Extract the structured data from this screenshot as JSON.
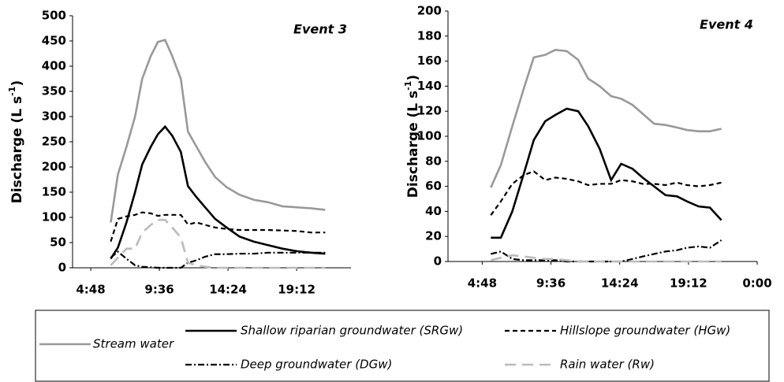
{
  "chart_data": [
    {
      "type": "line",
      "title": "Event 3",
      "y_label": [
        "Discharge (L s",
        "-1",
        ")"
      ],
      "x": [
        6.2,
        6.7,
        7.3,
        7.9,
        8.4,
        9.0,
        9.5,
        10.0,
        10.5,
        11.1,
        11.6,
        12.2,
        12.8,
        13.5,
        14.3,
        15.2,
        16.2,
        17.2,
        18.2,
        19.2,
        20.2,
        21.2
      ],
      "xlim": [
        3.53,
        23.0
      ],
      "xticks": [
        {
          "value": 4.8,
          "label": "4:48"
        },
        {
          "value": 9.6,
          "label": "9:36"
        },
        {
          "value": 14.4,
          "label": "14:24"
        },
        {
          "value": 19.2,
          "label": "19:12"
        }
      ],
      "ylim": [
        0,
        500
      ],
      "yticks": [
        0,
        50,
        100,
        150,
        200,
        250,
        300,
        350,
        400,
        450,
        500
      ],
      "grid": false,
      "series": [
        {
          "name": "Stream water",
          "color": "#999999",
          "dash": "solid",
          "values": [
            90,
            185,
            240,
            300,
            375,
            420,
            448,
            452,
            420,
            375,
            270,
            240,
            210,
            180,
            160,
            145,
            135,
            130,
            122,
            120,
            118,
            115
          ]
        },
        {
          "name": "Shallow riparian groundwater (SRGw)",
          "color": "#000000",
          "dash": "solid",
          "values": [
            18,
            40,
            90,
            150,
            205,
            240,
            265,
            280,
            262,
            230,
            162,
            140,
            120,
            97,
            80,
            62,
            52,
            45,
            38,
            33,
            30,
            28
          ]
        },
        {
          "name": "Hillslope groundwater (HGw)",
          "color": "#000000",
          "dash": "dash",
          "values": [
            52,
            97,
            102,
            105,
            110,
            108,
            103,
            105,
            105,
            105,
            86,
            90,
            85,
            80,
            77,
            75,
            75,
            75,
            74,
            73,
            70,
            70
          ]
        },
        {
          "name": "Deep groundwater (DGw)",
          "color": "#000000",
          "dash": "dashdot",
          "values": [
            20,
            32,
            18,
            5,
            2,
            1,
            0,
            0,
            0,
            0,
            10,
            15,
            22,
            27,
            27,
            28,
            28,
            30,
            30,
            30,
            30,
            30
          ]
        },
        {
          "name": "Rain water (Rw)",
          "color": "#bbbbbb",
          "dash": "longdash",
          "values": [
            5,
            20,
            38,
            38,
            70,
            85,
            95,
            95,
            80,
            60,
            10,
            5,
            2,
            0,
            0,
            0,
            0,
            0,
            0,
            0,
            0,
            0
          ]
        }
      ]
    },
    {
      "type": "line",
      "title": "Event 4",
      "y_label": [
        "Discharge (L s",
        "-1",
        ")"
      ],
      "x": [
        5.4,
        6.1,
        6.9,
        7.7,
        8.4,
        9.2,
        9.9,
        10.7,
        11.5,
        12.2,
        13.0,
        13.8,
        14.5,
        15.3,
        16.0,
        16.8,
        17.6,
        18.4,
        19.1,
        19.9,
        20.7,
        21.5
      ],
      "xlim": [
        2.41,
        24.0
      ],
      "xticks": [
        {
          "value": 4.8,
          "label": "4:48"
        },
        {
          "value": 9.6,
          "label": "9:36"
        },
        {
          "value": 14.4,
          "label": "14:24"
        },
        {
          "value": 19.2,
          "label": "19:12"
        },
        {
          "value": 24,
          "label": "0:00"
        }
      ],
      "ylim": [
        0,
        200
      ],
      "yticks": [
        0,
        20,
        40,
        60,
        80,
        100,
        120,
        140,
        160,
        180,
        200
      ],
      "grid": false,
      "series": [
        {
          "name": "Stream water",
          "color": "#999999",
          "dash": "solid",
          "values": [
            59,
            77,
            108,
            138,
            163,
            165,
            169,
            168,
            161,
            146,
            140,
            132,
            130,
            125,
            118,
            110,
            109,
            107,
            105,
            104,
            104,
            106
          ]
        },
        {
          "name": "Shallow riparian groundwater (SRGw)",
          "color": "#000000",
          "dash": "solid",
          "values": [
            19,
            19,
            40,
            70,
            97,
            112,
            117,
            122,
            120,
            108,
            90,
            65,
            78,
            74,
            67,
            60,
            53,
            52,
            48,
            44,
            43,
            33
          ]
        },
        {
          "name": "Hillslope groundwater (HGw)",
          "color": "#000000",
          "dash": "dash",
          "values": [
            37,
            48,
            62,
            69,
            72,
            65,
            67,
            66,
            64,
            61,
            62,
            62,
            65,
            64,
            62,
            62,
            61,
            63,
            61,
            60,
            61,
            63
          ]
        },
        {
          "name": "Deep groundwater (DGw)",
          "color": "#000000",
          "dash": "dashdot",
          "values": [
            6,
            8,
            2,
            1,
            1,
            1,
            1,
            0,
            0,
            0,
            0,
            0,
            0,
            2,
            4,
            6,
            8,
            9,
            11,
            12,
            11,
            17
          ]
        },
        {
          "name": "Rain water (Rw)",
          "color": "#bbbbbb",
          "dash": "longdash",
          "values": [
            1,
            3,
            5,
            4,
            3,
            2,
            2,
            1,
            0,
            0,
            0,
            0,
            0,
            0,
            0,
            0,
            0,
            0,
            0,
            0,
            0,
            0
          ]
        }
      ]
    }
  ]
}
